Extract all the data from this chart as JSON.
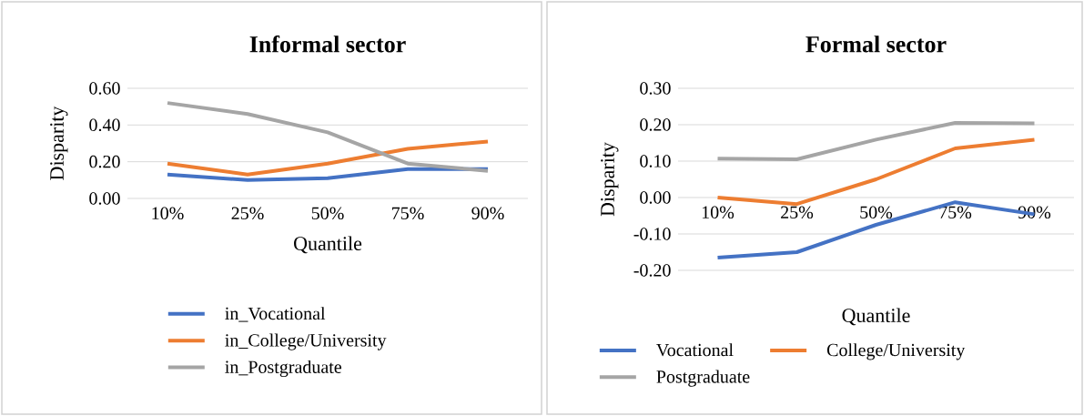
{
  "chart_data": [
    {
      "type": "line",
      "title": "Informal sector",
      "xlabel": "Quantile",
      "ylabel": "Disparity",
      "categories": [
        "10%",
        "25%",
        "50%",
        "75%",
        "90%"
      ],
      "series": [
        {
          "name": "in_Vocational",
          "color": "#4472c4",
          "values": [
            0.13,
            0.1,
            0.11,
            0.16,
            0.16
          ]
        },
        {
          "name": "in_College/University",
          "color": "#ed7d31",
          "values": [
            0.19,
            0.13,
            0.19,
            0.27,
            0.31
          ]
        },
        {
          "name": "in_Postgraduate",
          "color": "#a5a5a5",
          "values": [
            0.52,
            0.46,
            0.36,
            0.19,
            0.15
          ]
        }
      ],
      "ylim": [
        0,
        0.6
      ],
      "yticks": [
        {
          "value": 0,
          "label": "0.00"
        },
        {
          "value": 0.2,
          "label": "0.20"
        },
        {
          "value": 0.4,
          "label": "0.40"
        },
        {
          "value": 0.6,
          "label": "0.60"
        }
      ],
      "grid": "y",
      "legend": "bottom",
      "marker": "none",
      "line_style": "solid"
    },
    {
      "type": "line",
      "title": "Formal sector",
      "xlabel": "Quantile",
      "ylabel": "Disparity",
      "categories": [
        "10%",
        "25%",
        "50%",
        "75%",
        "90%"
      ],
      "series": [
        {
          "name": "Vocational",
          "color": "#4472c4",
          "values": [
            -0.165,
            -0.15,
            -0.075,
            -0.013,
            -0.046
          ]
        },
        {
          "name": "College/University",
          "color": "#ed7d31",
          "values": [
            0.0,
            -0.018,
            0.05,
            0.135,
            0.159
          ]
        },
        {
          "name": "Postgraduate",
          "color": "#a5a5a5",
          "values": [
            0.107,
            0.105,
            0.159,
            0.205,
            0.204
          ]
        }
      ],
      "ylim": [
        -0.2,
        0.3
      ],
      "yticks": [
        {
          "value": -0.2,
          "label": "-0.20"
        },
        {
          "value": -0.1,
          "label": "-0.10"
        },
        {
          "value": 0,
          "label": "0.00"
        },
        {
          "value": 0.1,
          "label": "0.10"
        },
        {
          "value": 0.2,
          "label": "0.20"
        },
        {
          "value": 0.3,
          "label": "0.30"
        }
      ],
      "grid": "y",
      "legend": "bottom",
      "marker": "none",
      "line_style": "solid"
    }
  ]
}
